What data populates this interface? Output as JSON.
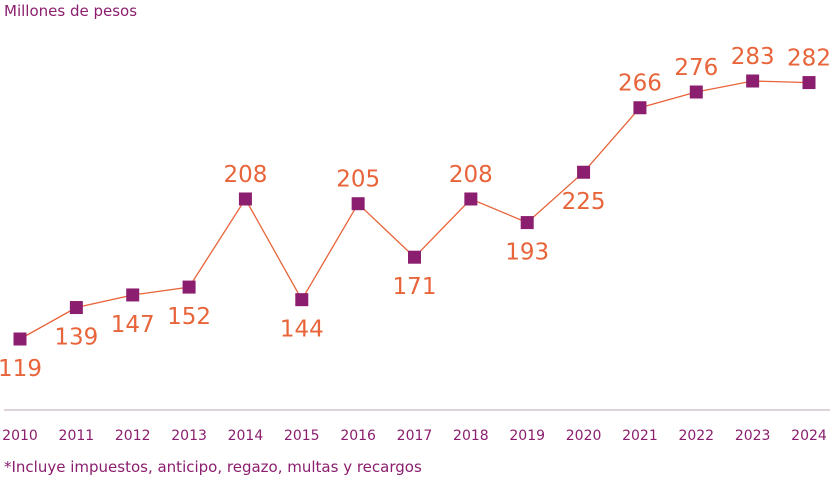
{
  "chart_data": {
    "type": "line",
    "ylabel": "Millones de pesos",
    "categories": [
      "2010",
      "2011",
      "2012",
      "2013",
      "2014",
      "2015",
      "2016",
      "2017",
      "2018",
      "2019",
      "2020",
      "2021",
      "2022",
      "2023",
      "2024"
    ],
    "series": [
      {
        "values": [
          119,
          139,
          147,
          152,
          208,
          144,
          205,
          171,
          208,
          193,
          225,
          266,
          276,
          283,
          282
        ]
      }
    ],
    "data_label_side": [
      "below",
      "below",
      "below",
      "below",
      "above",
      "below",
      "above",
      "below",
      "above",
      "below",
      "below",
      "above",
      "above",
      "above",
      "above"
    ],
    "footnote": "*Incluye impuestos, anticipo, regazo, multas y recargos",
    "colors": {
      "line": "#e8643a",
      "marker": "#8b1e6e",
      "labels": "#e8643a",
      "axis_text": "#8b1e6e",
      "baseline": "#d3c4cf"
    },
    "grid": false,
    "legend": "none"
  }
}
